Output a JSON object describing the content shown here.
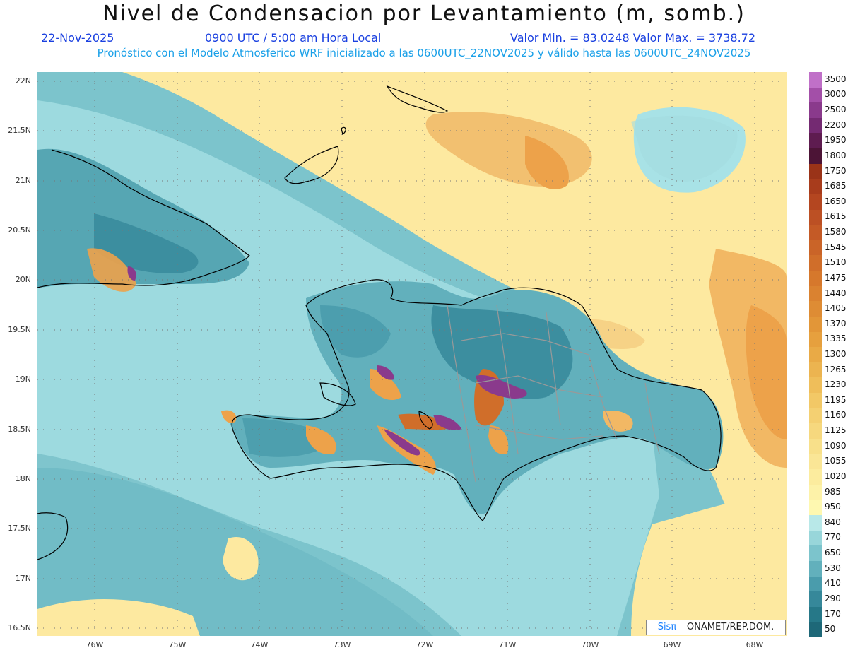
{
  "title": "Nivel de Condensacion por Levantamiento (m, somb.)",
  "header": {
    "date": "22-Nov-2025",
    "time": "0900 UTC / 5:00 am Hora Local",
    "stats": "Valor Min. = 83.0248   Valor Max. = 3738.72",
    "model_info": "Pronóstico con el Modelo Atmosferico WRF inicializado a las 0600UTC_22NOV2025 y válido hasta las  0600UTC_24NOV2025"
  },
  "latitude_labels": [
    "22N",
    "21.5N",
    "21N",
    "20.5N",
    "20N",
    "19.5N",
    "19N",
    "18.5N",
    "18N",
    "17.5N",
    "17N",
    "16.5N"
  ],
  "longitude_labels": [
    "76W",
    "75W",
    "74W",
    "73W",
    "72W",
    "71W",
    "70W",
    "69W",
    "68W"
  ],
  "legend": {
    "labels": [
      "3500",
      "3000",
      "2500",
      "2200",
      "1950",
      "1800",
      "1750",
      "1685",
      "1650",
      "1615",
      "1580",
      "1545",
      "1510",
      "1475",
      "1440",
      "1405",
      "1370",
      "1335",
      "1300",
      "1265",
      "1230",
      "1195",
      "1160",
      "1125",
      "1090",
      "1055",
      "1020",
      "985",
      "950",
      "840",
      "770",
      "650",
      "530",
      "410",
      "290",
      "170",
      "50"
    ],
    "colors": [
      "#c070c8",
      "#a34fa8",
      "#8a3a8c",
      "#742a72",
      "#5e1c50",
      "#4c1436",
      "#9a3318",
      "#a83c1c",
      "#b44620",
      "#bc5024",
      "#c45a26",
      "#ca6428",
      "#d06e2a",
      "#d6782c",
      "#da8230",
      "#de8c34",
      "#e29638",
      "#e6a03e",
      "#e9aa46",
      "#ecb450",
      "#efbe5a",
      "#f2c866",
      "#f4d072",
      "#f6d87e",
      "#f8e08a",
      "#fae696",
      "#fcec9e",
      "#fdf2a8",
      "#fef8b0",
      "#b8e8e8",
      "#98d6da",
      "#7cc4cc",
      "#62b0bc",
      "#4a9cac",
      "#36889a",
      "#267888",
      "#1e6878"
    ]
  },
  "credit": {
    "brand": "Sisπ",
    "text": " – ONAMET/REP.DOM."
  },
  "colors": {
    "ocean_cool": "#7cc4cc",
    "ocean_light": "#a8e2e6",
    "warm_yellow": "#fde9a0",
    "orange": "#eda24a",
    "purple": "#8a3a8c",
    "coastline": "#000000",
    "border": "#888888"
  }
}
